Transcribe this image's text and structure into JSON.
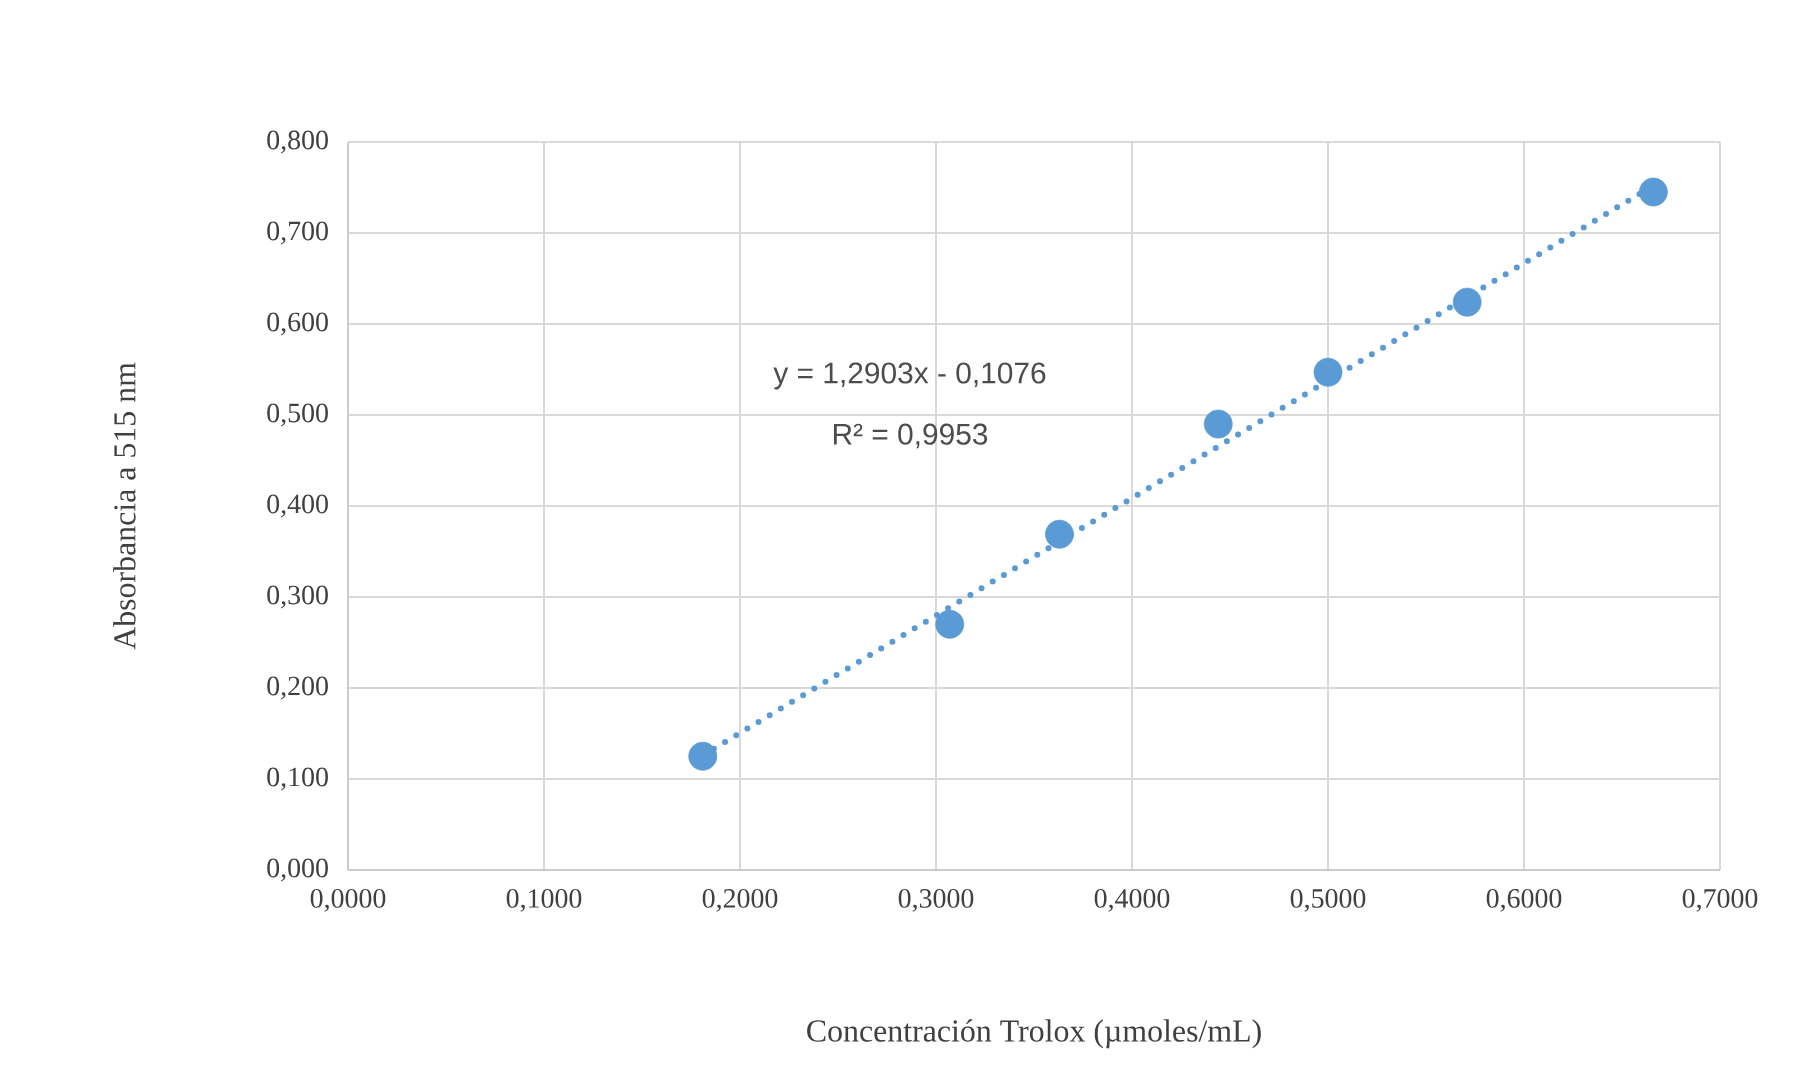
{
  "chart_data": {
    "type": "scatter",
    "xlabel": "Concentración Trolox (µmoles/mL)",
    "ylabel": "Absorbancia a 515 nm",
    "annotations": [
      "y = 1,2903x - 0,1076",
      "R² = 0,9953"
    ],
    "series": [
      {
        "color": "#5b9bd5",
        "marker": "circle",
        "x": [
          0.181,
          0.307,
          0.363,
          0.444,
          0.5,
          0.571,
          0.666
        ],
        "values": [
          0.125,
          0.27,
          0.369,
          0.49,
          0.547,
          0.624,
          0.745
        ]
      },
      {
        "type": "line",
        "color": "#5b9bd5",
        "line_style": "dotted",
        "marker": "none",
        "x": [
          0.181,
          0.666
        ],
        "values": [
          0.126,
          0.752
        ]
      }
    ],
    "xlim": [
      0,
      0.7
    ],
    "ylim": [
      0,
      0.8
    ],
    "xticks": [
      {
        "value": 0,
        "label": "0,0000"
      },
      {
        "value": 0.1,
        "label": "0,1000"
      },
      {
        "value": 0.2,
        "label": "0,2000"
      },
      {
        "value": 0.3,
        "label": "0,3000"
      },
      {
        "value": 0.4,
        "label": "0,4000"
      },
      {
        "value": 0.5,
        "label": "0,5000"
      },
      {
        "value": 0.6,
        "label": "0,6000"
      },
      {
        "value": 0.7,
        "label": "0,7000"
      }
    ],
    "yticks": [
      {
        "value": 0,
        "label": "0,000"
      },
      {
        "value": 0.1,
        "label": "0,100"
      },
      {
        "value": 0.2,
        "label": "0,200"
      },
      {
        "value": 0.3,
        "label": "0,300"
      },
      {
        "value": 0.4,
        "label": "0,400"
      },
      {
        "value": 0.5,
        "label": "0,500"
      },
      {
        "value": 0.6,
        "label": "0,600"
      },
      {
        "value": 0.7,
        "label": "0,700"
      },
      {
        "value": 0.8,
        "label": "0,800"
      }
    ],
    "grid": true
  }
}
